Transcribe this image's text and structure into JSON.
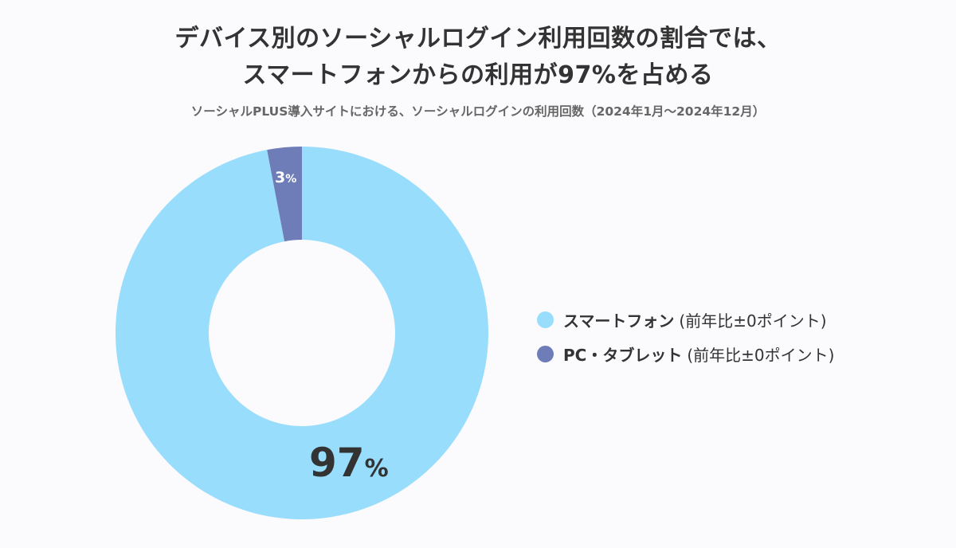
{
  "header": {
    "title_line1": "デバイス別のソーシャルログイン利用回数の割合では、",
    "title_line2": "スマートフォンからの利用が97%を占める",
    "subtitle": "ソーシャルPLUS導入サイトにおける、ソーシャルログインの利用回数（2024年1月〜2024年12月）"
  },
  "colors": {
    "smartphone": "#99ddfd",
    "pc_tablet": "#6e7db8",
    "background": "#fbfafc",
    "text": "#333333"
  },
  "labels": {
    "smartphone_num": "97",
    "smartphone_pct": "%",
    "pc_num": "3",
    "pc_pct": "%"
  },
  "legend": [
    {
      "name": "スマートフォン",
      "note": "(前年比±0ポイント)",
      "color": "#99ddfd"
    },
    {
      "name": "PC・タブレット",
      "note": "(前年比±0ポイント)",
      "color": "#6e7db8"
    }
  ],
  "chart_data": {
    "type": "pie",
    "variant": "donut",
    "title": "デバイス別のソーシャルログイン利用回数の割合では、スマートフォンからの利用が97%を占める",
    "subtitle": "ソーシャルPLUS導入サイトにおける、ソーシャルログインの利用回数（2024年1月〜2024年12月）",
    "categories": [
      "スマートフォン",
      "PC・タブレット"
    ],
    "values": [
      97,
      3
    ],
    "unit": "%",
    "colors": [
      "#99ddfd",
      "#6e7db8"
    ],
    "annotations": [
      "(前年比±0ポイント)",
      "(前年比±0ポイント)"
    ],
    "legend_position": "right",
    "start_angle": "12 o'clock, PC・タブレット counter-clockwise from top"
  }
}
